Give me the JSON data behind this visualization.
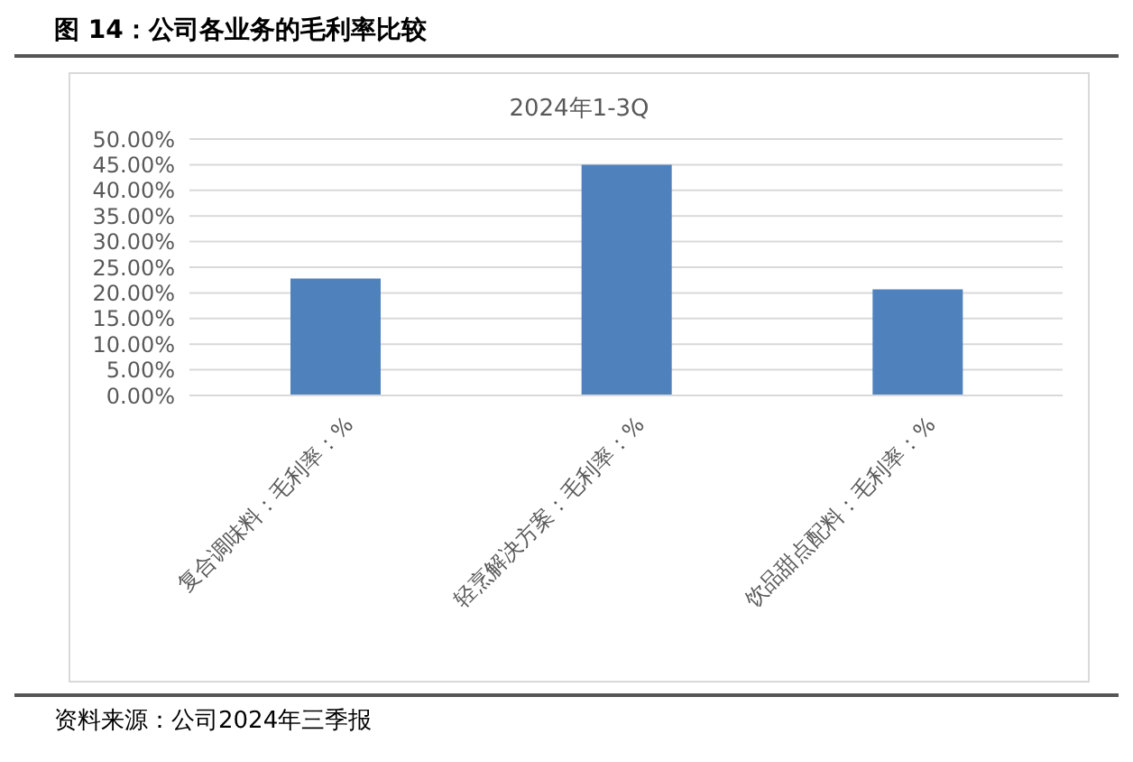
{
  "chart_data": {
    "type": "bar",
    "title": "图 14：公司各业务的毛利率比较",
    "subtitle": "2024年1-3Q",
    "categories": [
      "复合调味料：毛利率：%",
      "轻烹解决方案：毛利率：%",
      "饮品甜点配料：毛利率：%"
    ],
    "values": [
      22.8,
      45.0,
      20.7
    ],
    "color": "#4f81bd",
    "ylim": [
      0,
      50
    ],
    "yticks": [
      {
        "value": 0,
        "label": "0.00%"
      },
      {
        "value": 5,
        "label": "5.00%"
      },
      {
        "value": 10,
        "label": "10.00%"
      },
      {
        "value": 15,
        "label": "15.00%"
      },
      {
        "value": 20,
        "label": "20.00%"
      },
      {
        "value": 25,
        "label": "25.00%"
      },
      {
        "value": 30,
        "label": "30.00%"
      },
      {
        "value": 35,
        "label": "35.00%"
      },
      {
        "value": 40,
        "label": "40.00%"
      },
      {
        "value": 45,
        "label": "45.00%"
      },
      {
        "value": 50,
        "label": "50.00%"
      }
    ],
    "grid": "y",
    "legend": false,
    "annotations": [
      "资料来源：公司2024年三季报"
    ]
  }
}
